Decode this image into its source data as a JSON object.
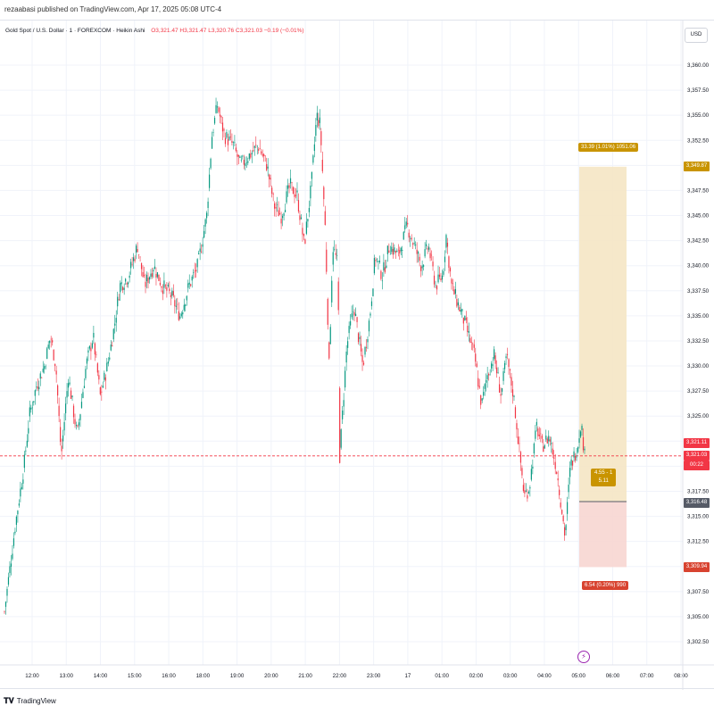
{
  "header": {
    "publisher_line": "rezaabasi published on TradingView.com, Apr 17, 2025 05:08 UTC-4"
  },
  "legend": {
    "symbol": "Gold Spot / U.S. Dollar · 1 · FOREXCOM · Heikin Ashi",
    "open": "O3,321.47",
    "high": "H3,321.47",
    "low": "L3,320.76",
    "close": "C3,321.03",
    "change": "−0.19 (−0.01%)"
  },
  "currency_button": "USD",
  "footer": {
    "logo_icon": "tradingview-logo-icon",
    "brand": "TradingView"
  },
  "position_tool": {
    "entry": 3316.48,
    "target": 3349.87,
    "stop": 3309.94,
    "target_label": "33.39 (1.01%) 1051.06",
    "stop_label": "6.54 (0.20%) 990",
    "ratio_line1": "4.55 - 1",
    "ratio_line2": "5.11",
    "target_color": "#f5e6c4",
    "stop_color": "#f7d6d2",
    "tag_color": "#c99400"
  },
  "price_tags": {
    "target": "3,349.87",
    "last_high": "3,321.11",
    "last": "3,321.03",
    "countdown": "00:22",
    "entry": "3,316.48",
    "stop": "3,309.94"
  },
  "chart_data": {
    "type": "candlestick",
    "style": "Heikin Ashi",
    "y_ticks": [
      3360.0,
      3357.5,
      3355.0,
      3352.5,
      3350.0,
      3347.5,
      3345.0,
      3342.5,
      3340.0,
      3337.5,
      3335.0,
      3332.5,
      3330.0,
      3327.5,
      3325.0,
      3322.5,
      3320.0,
      3317.5,
      3315.0,
      3312.5,
      3310.0,
      3307.5,
      3305.0,
      3302.5
    ],
    "y_tick_labels": [
      "3,360.00",
      "3,357.50",
      "3,355.00",
      "3,352.50",
      "",
      "3,347.50",
      "3,345.00",
      "3,342.50",
      "3,340.00",
      "3,337.50",
      "3,335.00",
      "3,332.50",
      "3,330.00",
      "3,327.50",
      "3,325.00",
      "",
      "",
      "3,317.50",
      "3,315.00",
      "3,312.50",
      "",
      "3,307.50",
      "3,305.00",
      "3,302.50"
    ],
    "x_tick_labels": [
      "12:00",
      "13:00",
      "14:00",
      "15:00",
      "16:00",
      "18:00",
      "19:00",
      "20:00",
      "21:00",
      "22:00",
      "23:00",
      "17",
      "01:00",
      "02:00",
      "03:00",
      "04:00",
      "05:00",
      "06:00",
      "07:00",
      "08:00"
    ],
    "last_price": 3321.03,
    "path_points": [
      [
        0,
        3305.5
      ],
      [
        12,
        3314
      ],
      [
        22,
        3320
      ],
      [
        28,
        3325
      ],
      [
        36,
        3328
      ],
      [
        45,
        3330
      ],
      [
        52,
        3333
      ],
      [
        58,
        3330
      ],
      [
        64,
        3321
      ],
      [
        72,
        3329
      ],
      [
        82,
        3323
      ],
      [
        92,
        3330
      ],
      [
        100,
        3333
      ],
      [
        108,
        3327
      ],
      [
        116,
        3330
      ],
      [
        124,
        3334
      ],
      [
        130,
        3338
      ],
      [
        140,
        3339
      ],
      [
        150,
        3342
      ],
      [
        158,
        3338
      ],
      [
        168,
        3340
      ],
      [
        178,
        3338
      ],
      [
        188,
        3337
      ],
      [
        198,
        3335
      ],
      [
        208,
        3338
      ],
      [
        218,
        3340
      ],
      [
        228,
        3345
      ],
      [
        234,
        3353
      ],
      [
        240,
        3356
      ],
      [
        248,
        3353
      ],
      [
        258,
        3352
      ],
      [
        266,
        3350
      ],
      [
        276,
        3351
      ],
      [
        286,
        3352
      ],
      [
        296,
        3350
      ],
      [
        304,
        3346
      ],
      [
        312,
        3345
      ],
      [
        322,
        3348
      ],
      [
        330,
        3347
      ],
      [
        338,
        3342
      ],
      [
        346,
        3348
      ],
      [
        352,
        3355
      ],
      [
        356,
        3354
      ],
      [
        362,
        3343
      ],
      [
        366,
        3330
      ],
      [
        370,
        3342
      ],
      [
        376,
        3340
      ],
      [
        378,
        3321
      ],
      [
        386,
        3332
      ],
      [
        394,
        3336
      ],
      [
        404,
        3330
      ],
      [
        412,
        3335
      ],
      [
        418,
        3341
      ],
      [
        426,
        3339
      ],
      [
        434,
        3342
      ],
      [
        444,
        3341
      ],
      [
        454,
        3344
      ],
      [
        462,
        3342
      ],
      [
        470,
        3340
      ],
      [
        478,
        3342
      ],
      [
        486,
        3338
      ],
      [
        494,
        3339
      ],
      [
        498,
        3343
      ],
      [
        504,
        3338
      ],
      [
        512,
        3336
      ],
      [
        520,
        3334
      ],
      [
        530,
        3331
      ],
      [
        538,
        3326
      ],
      [
        544,
        3329
      ],
      [
        552,
        3331
      ],
      [
        560,
        3327
      ],
      [
        566,
        3331
      ],
      [
        574,
        3327
      ],
      [
        580,
        3322
      ],
      [
        586,
        3317
      ],
      [
        592,
        3318
      ],
      [
        600,
        3324
      ],
      [
        606,
        3322
      ],
      [
        614,
        3323
      ],
      [
        622,
        3320
      ],
      [
        628,
        3316
      ],
      [
        632,
        3313
      ],
      [
        638,
        3320
      ],
      [
        646,
        3322
      ],
      [
        650,
        3324.5
      ],
      [
        654,
        3321.03
      ]
    ]
  }
}
